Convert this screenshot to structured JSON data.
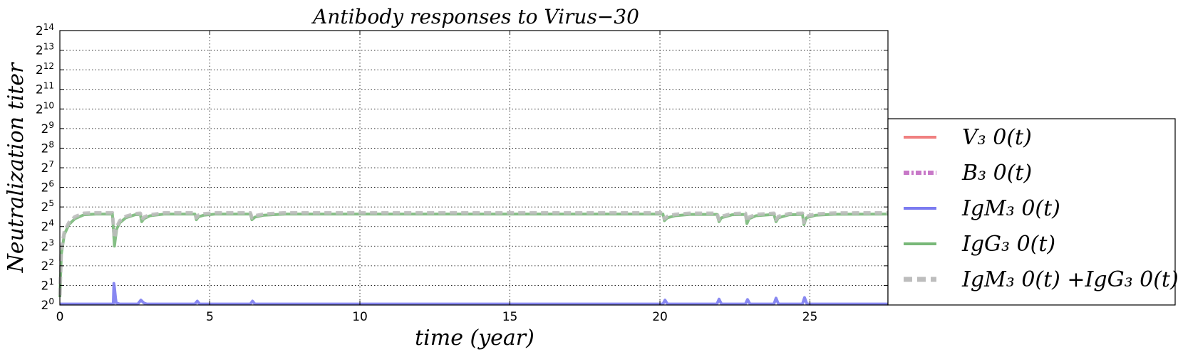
{
  "chart_data": {
    "type": "line",
    "title": "Antibody responses to Virus−30",
    "xlabel": "time (year)",
    "ylabel": "Neutralization  titer",
    "xlim": [
      0,
      27.6
    ],
    "ylim_log2": [
      0,
      14
    ],
    "y_scale": "log2",
    "xticks": [
      0,
      5,
      10,
      15,
      20,
      25
    ],
    "xtick_labels": [
      "0",
      "5",
      "10",
      "15",
      "20",
      "25"
    ],
    "ytick_base": "2",
    "ytick_exponents": [
      "0",
      "1",
      "2",
      "3",
      "4",
      "5",
      "6",
      "7",
      "8",
      "9",
      "10",
      "11",
      "12",
      "13",
      "14"
    ],
    "grid": true,
    "legend_position": "right, outside plot",
    "legend": [
      {
        "label": "V₃ 0(t)",
        "color": "#f08080",
        "style": "solid"
      },
      {
        "label": "B₃ 0(t)",
        "color": "#c878c8",
        "style": "dashdot"
      },
      {
        "label": "IgM₃ 0(t)",
        "color": "#7b7bf0",
        "style": "solid"
      },
      {
        "label": "IgG₃ 0(t)",
        "color": "#78b878",
        "style": "solid"
      },
      {
        "label": "IgM₃ 0(t) +IgG₃ 0(t)",
        "color": "#bdbdbd",
        "style": "dashed"
      }
    ],
    "series": [
      {
        "name": "IgG₃ 0(t)",
        "color": "#78b878",
        "x": [
          0,
          0.05,
          0.15,
          0.3,
          0.5,
          0.8,
          1.2,
          1.75,
          1.82,
          1.86,
          1.9,
          2.0,
          2.2,
          2.5,
          2.68,
          2.73,
          2.8,
          3.0,
          3.5,
          4.5,
          4.55,
          4.62,
          4.8,
          5.2,
          6.35,
          6.4,
          6.5,
          6.8,
          7.5,
          12,
          20.1,
          20.15,
          20.25,
          20.5,
          21.0,
          21.9,
          21.97,
          22.05,
          22.4,
          22.85,
          22.9,
          22.97,
          23.2,
          23.8,
          23.87,
          23.95,
          24.3,
          24.75,
          24.8,
          24.88,
          25.2,
          25.8,
          27.6
        ],
        "y_log2": [
          0.4,
          2.6,
          3.6,
          4.1,
          4.4,
          4.6,
          4.64,
          4.64,
          3.0,
          3.5,
          3.9,
          4.2,
          4.45,
          4.6,
          4.62,
          4.25,
          4.4,
          4.55,
          4.64,
          4.64,
          4.35,
          4.5,
          4.58,
          4.64,
          4.64,
          4.35,
          4.48,
          4.58,
          4.64,
          4.64,
          4.64,
          4.3,
          4.45,
          4.55,
          4.62,
          4.62,
          4.25,
          4.45,
          4.6,
          4.62,
          4.15,
          4.4,
          4.55,
          4.62,
          4.25,
          4.45,
          4.6,
          4.62,
          4.1,
          4.45,
          4.58,
          4.63,
          4.64
        ]
      },
      {
        "name": "IgM₃ 0(t) +IgG₃ 0(t)",
        "color": "#bdbdbd",
        "x": [
          0,
          0.05,
          0.15,
          0.3,
          0.5,
          0.8,
          1.2,
          1.75,
          1.82,
          1.86,
          1.9,
          2.0,
          2.2,
          2.5,
          2.68,
          2.73,
          2.8,
          3.0,
          3.5,
          4.5,
          4.55,
          4.62,
          4.8,
          5.2,
          6.35,
          6.4,
          6.5,
          6.8,
          7.5,
          12,
          20.1,
          20.15,
          20.25,
          20.5,
          21.0,
          21.9,
          21.97,
          22.05,
          22.4,
          22.85,
          22.9,
          22.97,
          23.2,
          23.8,
          23.87,
          23.95,
          24.3,
          24.75,
          24.8,
          24.88,
          25.2,
          25.8,
          27.6
        ],
        "y_log2": [
          0.5,
          2.8,
          3.75,
          4.2,
          4.5,
          4.68,
          4.7,
          4.7,
          3.4,
          3.7,
          4.0,
          4.3,
          4.52,
          4.66,
          4.68,
          4.35,
          4.48,
          4.6,
          4.7,
          4.7,
          4.45,
          4.58,
          4.65,
          4.7,
          4.7,
          4.45,
          4.55,
          4.64,
          4.7,
          4.7,
          4.7,
          4.4,
          4.52,
          4.62,
          4.68,
          4.68,
          4.35,
          4.52,
          4.66,
          4.68,
          4.25,
          4.48,
          4.62,
          4.68,
          4.35,
          4.52,
          4.66,
          4.68,
          4.2,
          4.52,
          4.64,
          4.69,
          4.7
        ]
      },
      {
        "name": "IgM₃ 0(t)",
        "color": "#7b7bf0",
        "x": [
          0,
          1.78,
          1.8,
          1.82,
          1.84,
          1.86,
          1.88,
          2.0,
          2.6,
          2.7,
          2.8,
          2.9,
          4.5,
          4.58,
          4.66,
          6.35,
          6.42,
          6.5,
          20.1,
          20.17,
          20.25,
          21.9,
          21.97,
          22.05,
          22.85,
          22.92,
          23.0,
          23.8,
          23.87,
          23.95,
          24.75,
          24.82,
          24.9,
          27.6
        ],
        "y_log2": [
          0.05,
          0.05,
          1.1,
          0.9,
          0.6,
          0.3,
          0.1,
          0.05,
          0.05,
          0.25,
          0.1,
          0.05,
          0.05,
          0.2,
          0.05,
          0.05,
          0.2,
          0.05,
          0.05,
          0.25,
          0.05,
          0.05,
          0.3,
          0.05,
          0.05,
          0.28,
          0.05,
          0.05,
          0.35,
          0.05,
          0.05,
          0.38,
          0.05,
          0.05
        ]
      }
    ]
  }
}
